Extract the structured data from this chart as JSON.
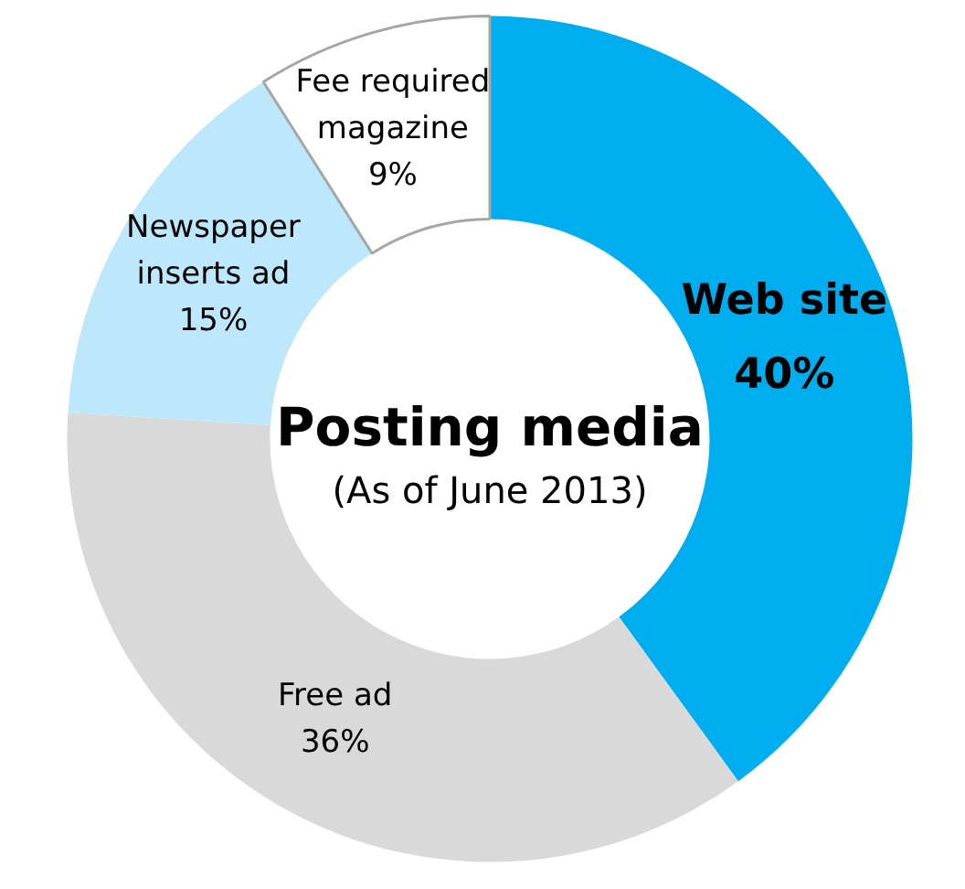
{
  "chart_data": {
    "type": "donut",
    "title": "Posting media",
    "subtitle": "(As of June 2013)",
    "categories": [
      "Web site",
      "Free ad",
      "Newspaper inserts ad",
      "Fee required magazine"
    ],
    "values": [
      40,
      36,
      15,
      9
    ],
    "value_labels": [
      "40%",
      "36%",
      "15%",
      "9%"
    ],
    "colors": [
      "#00aeef",
      "#d9d9d9",
      "#bde8fb",
      "#ffffff"
    ],
    "legend": false
  }
}
